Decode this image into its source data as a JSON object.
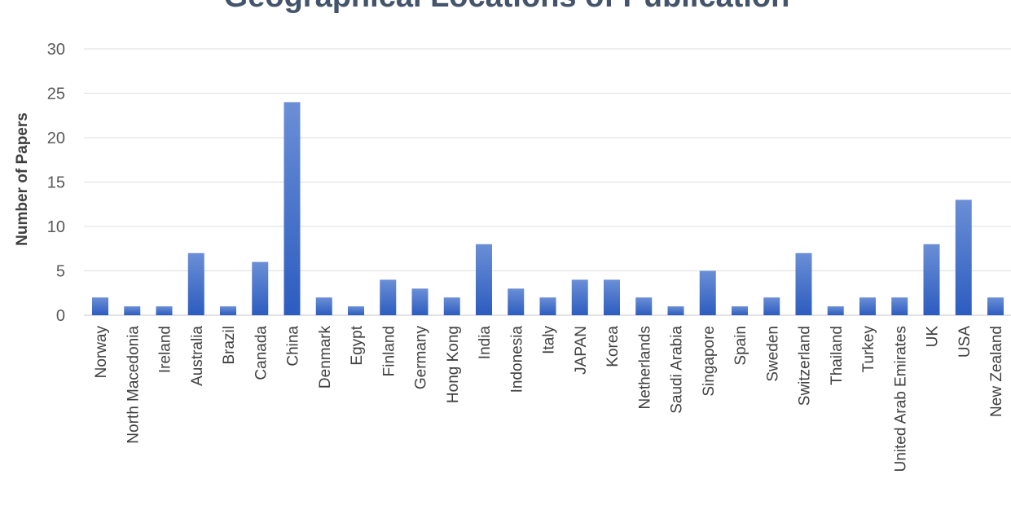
{
  "chart_data": {
    "type": "bar",
    "title": "Geographical Locations of Publication",
    "xlabel": "",
    "ylabel": "Number of Papers",
    "ylim": [
      0,
      30
    ],
    "yticks": [
      0,
      5,
      10,
      15,
      20,
      25,
      30
    ],
    "grid": true,
    "bar_color": "#4472C4",
    "categories": [
      "Norway",
      "North Macedonia",
      "Ireland",
      "Australia",
      "Brazil",
      "Canada",
      "China",
      "Denmark",
      "Egypt",
      "Finland",
      "Germany",
      "Hong Kong",
      "India",
      "Indonesia",
      "Italy",
      "JAPAN",
      "Korea",
      "Netherlands",
      "Saudi Arabia",
      "Singapore",
      "Spain",
      "Sweden",
      "Switzerland",
      "Thailand",
      "Turkey",
      "United Arab Emirates",
      "UK",
      "USA",
      "New Zealand"
    ],
    "values": [
      2,
      1,
      1,
      7,
      1,
      6,
      24,
      2,
      1,
      4,
      3,
      2,
      8,
      3,
      2,
      4,
      4,
      2,
      1,
      5,
      1,
      2,
      7,
      1,
      2,
      2,
      8,
      13,
      2
    ]
  }
}
